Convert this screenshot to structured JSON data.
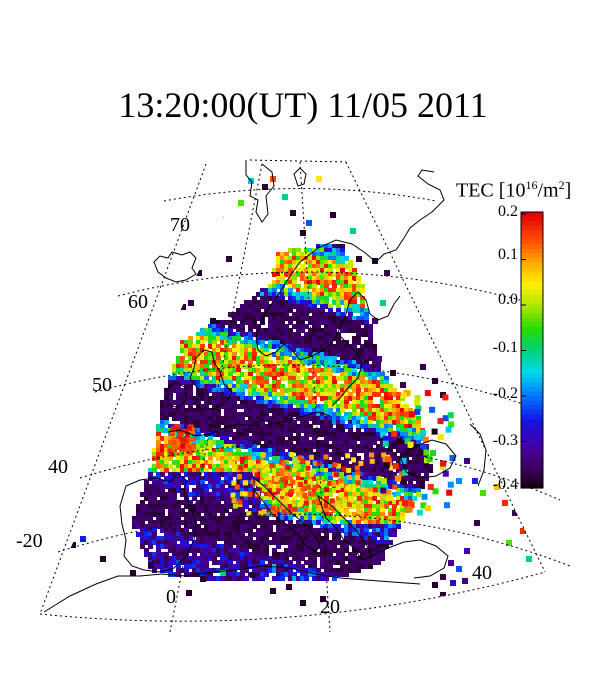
{
  "title": "13:20:00(UT)  11/05 2011",
  "colorbar": {
    "quantity": "TEC",
    "unit_base": "[10",
    "unit_exp": "16",
    "unit_tail": "/m",
    "unit_exp2": "2",
    "unit_close": "]",
    "ticks": [
      "0.2",
      "0.1",
      "0.0",
      "-0.1",
      "-0.2",
      "-0.3",
      "-0.4"
    ],
    "range": [
      -0.4,
      0.2
    ]
  },
  "map": {
    "lat_labels": [
      "70",
      "60",
      "50",
      "40"
    ],
    "lon_labels": [
      "-20",
      "0",
      "20",
      "40"
    ],
    "colors": {
      "background": "#ffffff",
      "coast": "#000000",
      "grid": "#000000"
    }
  }
}
